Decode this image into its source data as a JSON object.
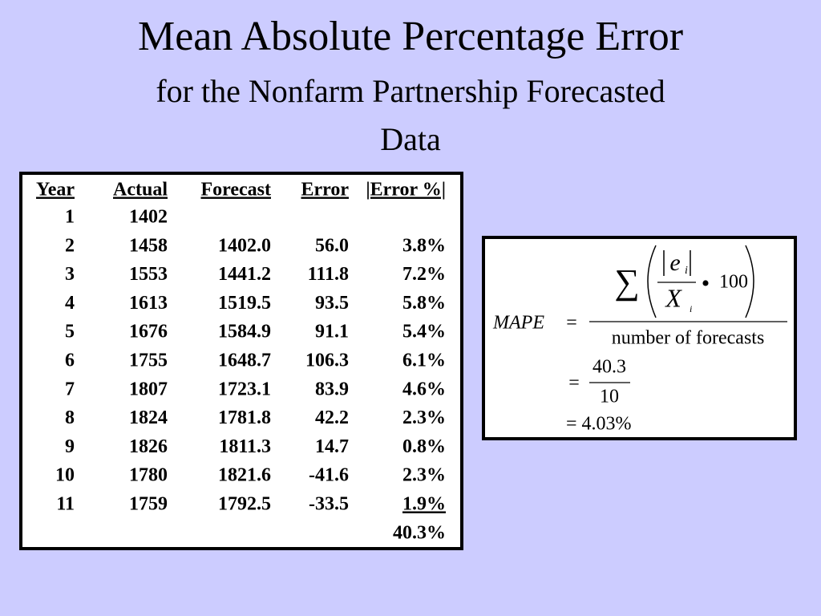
{
  "title": "Mean Absolute Percentage Error",
  "subtitle": [
    "for the Nonfarm Partnership Forecasted",
    "Data"
  ],
  "table": {
    "headers": [
      "Year",
      "Actual",
      "Forecast",
      "Error",
      "|Error %|"
    ],
    "rows": [
      [
        "1",
        "1402",
        null,
        null,
        null
      ],
      [
        "2",
        "1458",
        "1402.0",
        "56.0",
        "3.8%"
      ],
      [
        "3",
        "1553",
        "1441.2",
        "111.8",
        "7.2%"
      ],
      [
        "4",
        "1613",
        "1519.5",
        "93.5",
        "5.8%"
      ],
      [
        "5",
        "1676",
        "1584.9",
        "91.1",
        "5.4%"
      ],
      [
        "6",
        "1755",
        "1648.7",
        "106.3",
        "6.1%"
      ],
      [
        "7",
        "1807",
        "1723.1",
        "83.9",
        "4.6%"
      ],
      [
        "8",
        "1824",
        "1781.8",
        "42.2",
        "2.3%"
      ],
      [
        "9",
        "1826",
        "1811.3",
        "14.7",
        "0.8%"
      ],
      [
        "10",
        "1780",
        "1821.6",
        "-41.6",
        "2.3%"
      ],
      [
        "11",
        "1759",
        "1792.5",
        "-33.5",
        "1.9%"
      ]
    ],
    "total": "40.3%"
  },
  "formula": {
    "lhs": "MAPE",
    "equals": "=",
    "sum": "∑",
    "numerator_var": "e",
    "numerator_sub": "i",
    "denominator_var": "X",
    "denominator_sub": "i",
    "operator": "•",
    "factor": "100",
    "denominator": "number of forecasts",
    "step_equals": "=",
    "step_numerator": "40.3",
    "step_denominator": "10",
    "result": "= 4.03%"
  }
}
